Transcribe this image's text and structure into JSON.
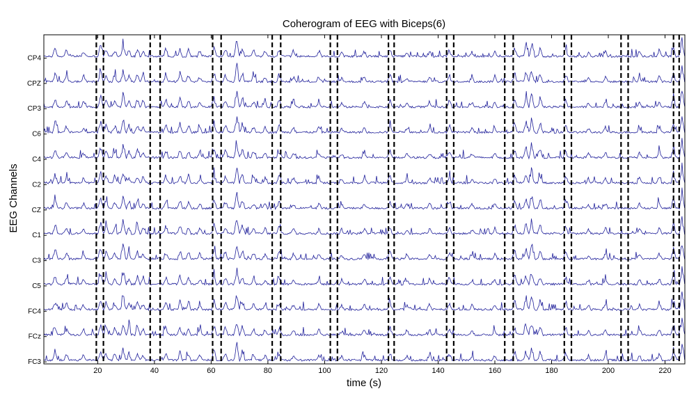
{
  "chart_data": {
    "type": "line",
    "title": "Coherogram of EEG with Biceps(6)",
    "xlabel": "time (s)",
    "ylabel": "EEG Channels",
    "xlim": [
      1,
      227
    ],
    "x_ticks": [
      20,
      40,
      60,
      80,
      100,
      120,
      140,
      160,
      180,
      200,
      220
    ],
    "x_tick_labels": [
      "20",
      "40",
      "60",
      "80",
      "100",
      "120",
      "140",
      "160",
      "180",
      "200",
      "220"
    ],
    "channels": [
      "CP4",
      "CPZ",
      "CP3",
      "C6",
      "C4",
      "C2",
      "CZ",
      "C1",
      "C3",
      "C5",
      "FC4",
      "FCz",
      "FC3"
    ],
    "line_color": "#1f1f9a",
    "marker_color": "#000000",
    "event_markers": [
      19.5,
      22,
      38.5,
      42,
      60.5,
      63.5,
      81.5,
      84.5,
      102,
      104.5,
      122.5,
      124.5,
      143,
      145.5,
      163.5,
      166.5,
      184.5,
      187,
      204.5,
      207,
      223,
      225
    ],
    "common_peaks": [
      {
        "t": 5,
        "a": 0.55
      },
      {
        "t": 9,
        "a": 0.35
      },
      {
        "t": 15,
        "a": 0.3
      },
      {
        "t": 21,
        "a": 0.65
      },
      {
        "t": 23,
        "a": 0.45
      },
      {
        "t": 26,
        "a": 0.4
      },
      {
        "t": 29,
        "a": 0.8
      },
      {
        "t": 31,
        "a": 0.4
      },
      {
        "t": 34,
        "a": 0.45
      },
      {
        "t": 36,
        "a": 0.35
      },
      {
        "t": 44,
        "a": 0.45
      },
      {
        "t": 49,
        "a": 0.5
      },
      {
        "t": 52,
        "a": 0.4
      },
      {
        "t": 56,
        "a": 0.3
      },
      {
        "t": 61,
        "a": 0.55
      },
      {
        "t": 65,
        "a": 0.45
      },
      {
        "t": 69,
        "a": 0.95
      },
      {
        "t": 71,
        "a": 0.5
      },
      {
        "t": 75,
        "a": 0.35
      },
      {
        "t": 79,
        "a": 0.3
      },
      {
        "t": 84,
        "a": 0.45
      },
      {
        "t": 89,
        "a": 0.3
      },
      {
        "t": 98,
        "a": 0.3
      },
      {
        "t": 106,
        "a": 0.25
      },
      {
        "t": 114,
        "a": 0.3
      },
      {
        "t": 123,
        "a": 0.45
      },
      {
        "t": 129,
        "a": 0.25
      },
      {
        "t": 137,
        "a": 0.3
      },
      {
        "t": 144,
        "a": 0.4
      },
      {
        "t": 152,
        "a": 0.25
      },
      {
        "t": 160,
        "a": 0.3
      },
      {
        "t": 167,
        "a": 0.5
      },
      {
        "t": 171,
        "a": 0.6
      },
      {
        "t": 173,
        "a": 0.8
      },
      {
        "t": 176,
        "a": 0.5
      },
      {
        "t": 185,
        "a": 0.45
      },
      {
        "t": 193,
        "a": 0.25
      },
      {
        "t": 199,
        "a": 0.3
      },
      {
        "t": 211,
        "a": 0.3
      },
      {
        "t": 218,
        "a": 0.35
      },
      {
        "t": 223,
        "a": 0.6
      },
      {
        "t": 226,
        "a": 0.95
      }
    ]
  }
}
